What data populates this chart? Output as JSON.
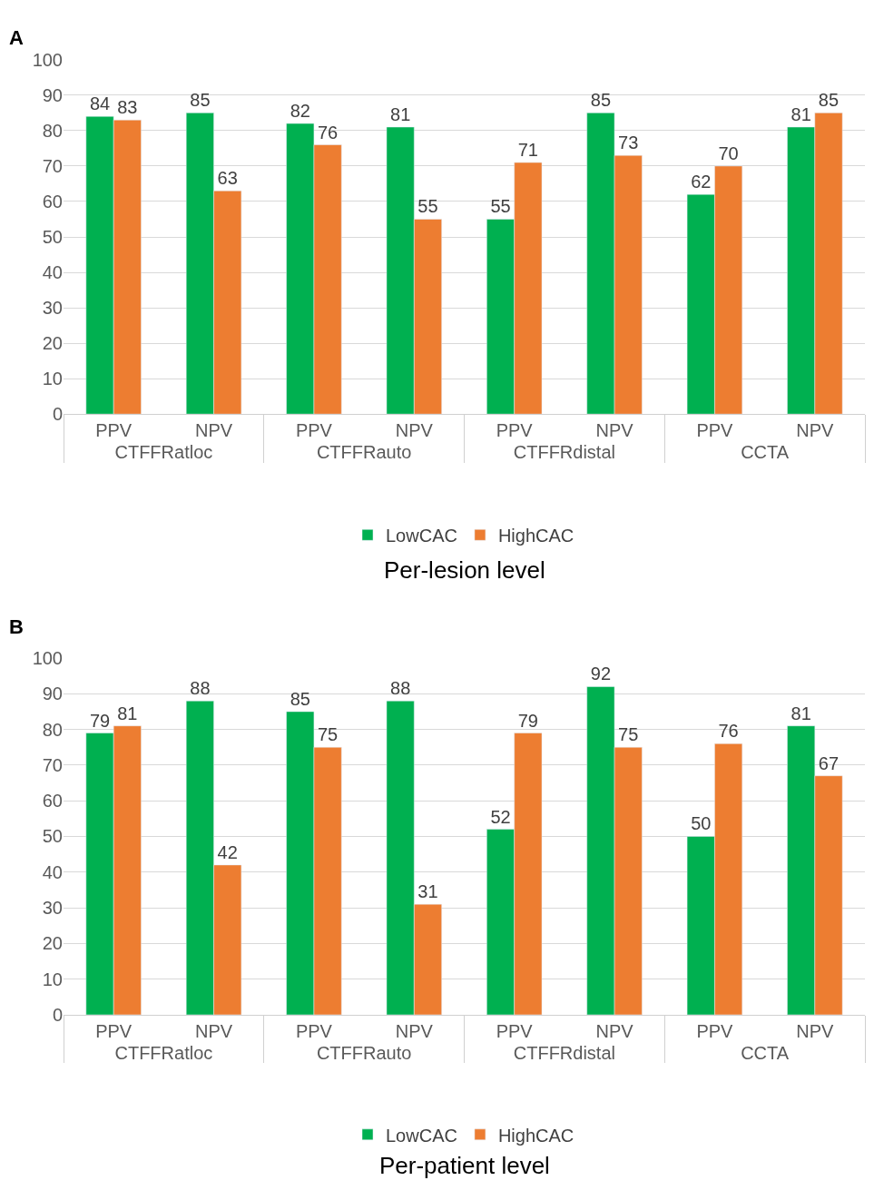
{
  "chart_data": [
    {
      "type": "bar",
      "title": "Per-lesion level",
      "annotations": [
        "A",
        "CTFFRatloc",
        "CTFFRauto",
        "CTFFRdistal",
        "CCTA"
      ],
      "categories": [
        "PPV",
        "NPV",
        "PPV",
        "NPV",
        "PPV",
        "NPV",
        "PPV",
        "NPV"
      ],
      "series": [
        {
          "name": "LowCAC",
          "color": "#00b050",
          "values": [
            84,
            85,
            82,
            81,
            55,
            85,
            62,
            81
          ]
        },
        {
          "name": "HighCAC",
          "color": "#ed7d31",
          "values": [
            83,
            63,
            76,
            55,
            71,
            73,
            70,
            85
          ]
        }
      ],
      "ylim": [
        0,
        100
      ],
      "yticks": [
        0,
        10,
        20,
        30,
        40,
        50,
        60,
        70,
        80,
        90,
        100
      ],
      "grid": "y",
      "legend": "bottom",
      "data_labels": true
    },
    {
      "type": "bar",
      "title": "Per-patient level",
      "annotations": [
        "B",
        "CTFFRatloc",
        "CTFFRauto",
        "CTFFRdistal",
        "CCTA"
      ],
      "categories": [
        "PPV",
        "NPV",
        "PPV",
        "NPV",
        "PPV",
        "NPV",
        "PPV",
        "NPV"
      ],
      "series": [
        {
          "name": "LowCAC",
          "color": "#00b050",
          "values": [
            79,
            88,
            85,
            88,
            52,
            92,
            50,
            81
          ]
        },
        {
          "name": "HighCAC",
          "color": "#ed7d31",
          "values": [
            81,
            42,
            75,
            31,
            79,
            75,
            76,
            67
          ]
        }
      ],
      "ylim": [
        0,
        100
      ],
      "yticks": [
        0,
        10,
        20,
        30,
        40,
        50,
        60,
        70,
        80,
        90,
        100
      ],
      "grid": "y",
      "legend": "bottom",
      "data_labels": true
    }
  ]
}
